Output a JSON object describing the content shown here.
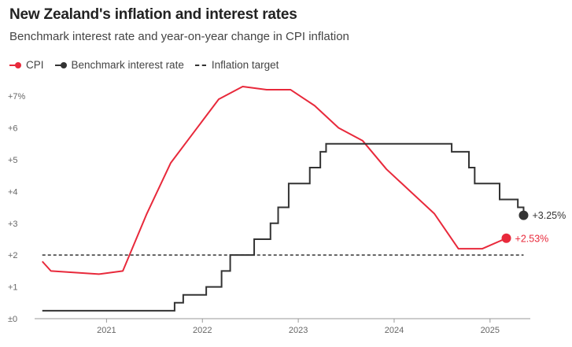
{
  "header": {
    "title": "New Zealand's inflation and interest rates",
    "subtitle": "Benchmark interest rate and year-on-year change in CPI inflation"
  },
  "legend": {
    "cpi_label": "CPI",
    "rate_label": "Benchmark interest rate",
    "target_label": "Inflation target"
  },
  "colors": {
    "cpi": "#e8293b",
    "rate": "#333333",
    "target": "#333333",
    "axis": "#999999"
  },
  "chart_data": {
    "type": "line",
    "title": "New Zealand's inflation and interest rates",
    "subtitle": "Benchmark interest rate and year-on-year change in CPI inflation",
    "xlabel": "",
    "ylabel": "",
    "xlim": [
      2020.25,
      2025.42
    ],
    "ylim": [
      0,
      7.3
    ],
    "x_ticks": [
      {
        "value": 2021,
        "label": "2021"
      },
      {
        "value": 2022,
        "label": "2022"
      },
      {
        "value": 2023,
        "label": "2023"
      },
      {
        "value": 2024,
        "label": "2024"
      },
      {
        "value": 2025,
        "label": "2025"
      }
    ],
    "y_ticks": [
      {
        "value": 0,
        "label": "±0"
      },
      {
        "value": 1,
        "label": "+1"
      },
      {
        "value": 2,
        "label": "+2"
      },
      {
        "value": 3,
        "label": "+3"
      },
      {
        "value": 4,
        "label": "+4"
      },
      {
        "value": 5,
        "label": "+5"
      },
      {
        "value": 6,
        "label": "+6"
      },
      {
        "value": 7,
        "label": "+7%"
      }
    ],
    "grid": false,
    "legend_position": "top-left",
    "series": [
      {
        "name": "CPI",
        "kind": "line",
        "x": [
          2020.33,
          2020.42,
          2020.92,
          2021.17,
          2021.42,
          2021.67,
          2021.92,
          2022.17,
          2022.42,
          2022.67,
          2022.92,
          2023.17,
          2023.42,
          2023.67,
          2023.92,
          2024.17,
          2024.42,
          2024.67,
          2024.92,
          2025.17
        ],
        "values": [
          1.8,
          1.5,
          1.4,
          1.5,
          3.3,
          4.9,
          5.9,
          6.9,
          7.3,
          7.2,
          7.2,
          6.7,
          6.0,
          5.6,
          4.7,
          4.0,
          3.3,
          2.2,
          2.2,
          2.53
        ]
      },
      {
        "name": "Benchmark interest rate",
        "kind": "step",
        "x": [
          2020.33,
          2021.71,
          2021.8,
          2022.04,
          2022.2,
          2022.29,
          2022.46,
          2022.54,
          2022.71,
          2022.79,
          2022.9,
          2023.12,
          2023.23,
          2023.29,
          2024.6,
          2024.78,
          2024.84,
          2024.94,
          2025.1,
          2025.29,
          2025.35
        ],
        "values": [
          0.25,
          0.5,
          0.75,
          1.0,
          1.5,
          2.0,
          2.0,
          2.5,
          3.0,
          3.5,
          4.25,
          4.75,
          5.25,
          5.5,
          5.25,
          4.75,
          4.25,
          4.25,
          3.75,
          3.5,
          3.25
        ]
      },
      {
        "name": "Inflation target",
        "kind": "reference",
        "x": [
          2020.33,
          2025.35
        ],
        "values": [
          2,
          2
        ]
      }
    ],
    "annotations": [
      {
        "series": "Benchmark interest rate",
        "label": "+3.25%"
      },
      {
        "series": "CPI",
        "label": "+2.53%"
      }
    ]
  }
}
